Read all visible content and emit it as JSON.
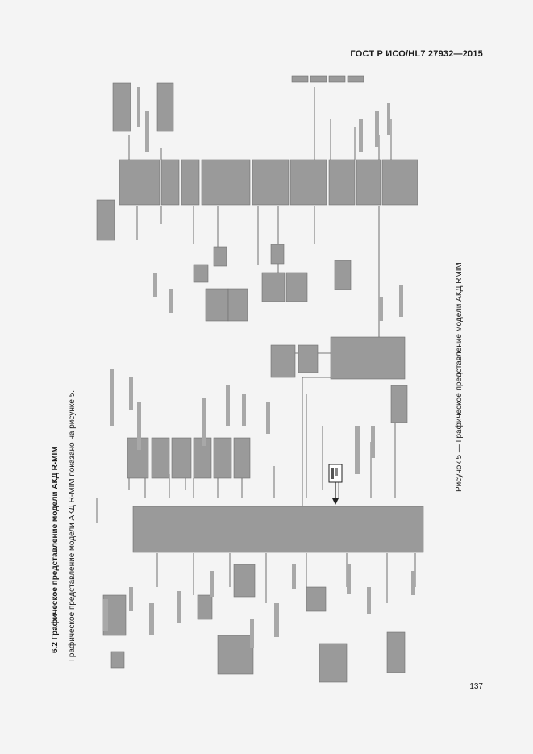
{
  "header": {
    "standard_code": "ГОСТ Р ИСО/HL7 27932—2015"
  },
  "section": {
    "heading": "6.2 Графическое представление модели АКД R-MIM",
    "intro": "Графическое представление модели АКД R-MIM показано на рисунке 5."
  },
  "figure": {
    "caption": "Рисунок 5 — Графическое представление модели АКД RMIM",
    "diagram_type": "R-MIM class diagram (rotated 90°, labels illegible)",
    "colors": {
      "class_box": "#9a9a9a",
      "box_outline": "#6f6f6f",
      "connector": "#505050",
      "highlight_box": "#ffffff"
    }
  },
  "page": {
    "number": "137"
  }
}
